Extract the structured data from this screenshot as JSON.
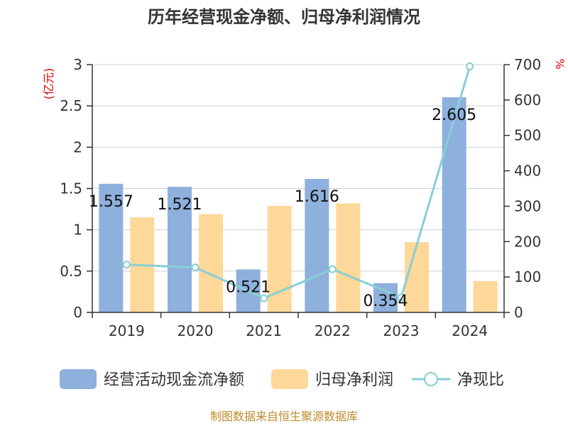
{
  "chart_data": {
    "type": "bar",
    "title": "历年经营现金净额、归母净利润情况",
    "categories": [
      "2019",
      "2020",
      "2021",
      "2022",
      "2023",
      "2024"
    ],
    "series": [
      {
        "name": "经营活动现金流净额",
        "type": "bar",
        "axis": "left",
        "color": "#8eb0dc",
        "values": [
          1.557,
          1.521,
          0.521,
          1.616,
          0.354,
          2.605
        ],
        "labels": [
          "1.557",
          "1.521",
          "0.521",
          "1.616",
          "0.354",
          "2.605"
        ]
      },
      {
        "name": "归母净利润",
        "type": "bar",
        "axis": "left",
        "color": "#fdd898",
        "values": [
          1.15,
          1.19,
          1.29,
          1.32,
          0.85,
          0.38
        ]
      },
      {
        "name": "净现比",
        "type": "line",
        "axis": "right",
        "color": "#86cfd6",
        "values": [
          135,
          127,
          40,
          122,
          42,
          695
        ]
      }
    ],
    "left_axis": {
      "label": "(亿元)",
      "min": 0,
      "max": 3,
      "ticks": [
        "0",
        "0.5",
        "1",
        "1.5",
        "2",
        "2.5",
        "3"
      ]
    },
    "right_axis": {
      "label": "%",
      "min": 0,
      "max": 700,
      "ticks": [
        "0",
        "100",
        "200",
        "300",
        "400",
        "500",
        "600",
        "700"
      ]
    },
    "grid": true,
    "legend_position": "bottom",
    "source": "制图数据来自恒生聚源数据库"
  }
}
